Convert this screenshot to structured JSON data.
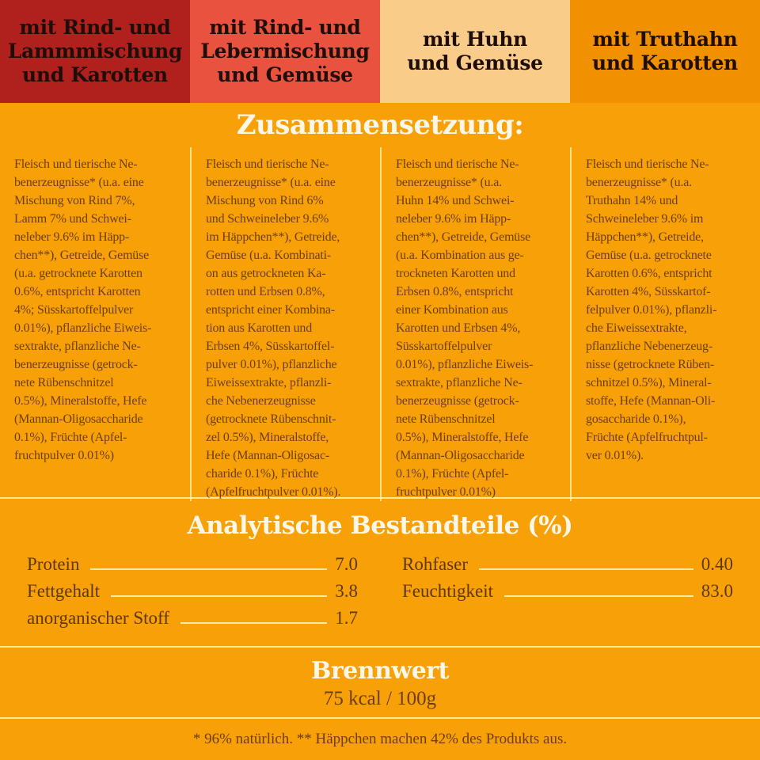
{
  "page": {
    "background": "#F8A008",
    "body_text_color": "#6D3E11",
    "title_color": "#FDF7EA",
    "divider_color": "#FFE88D"
  },
  "variants": [
    {
      "label": "mit Rind- und\nLammmischung\nund Karotten",
      "bg": "#B0211E",
      "text_color": "#1F0E08"
    },
    {
      "label": "mit Rind- und\nLebermischung\nund Gemüse",
      "bg": "#E8523F",
      "text_color": "#1F0E08"
    },
    {
      "label": "mit Huhn\nund Gemüse",
      "bg": "#FACC8A",
      "text_color": "#1F0E08"
    },
    {
      "label": "mit Truthahn\nund Karotten",
      "bg": "#F19000",
      "text_color": "#1F0E08"
    }
  ],
  "composition": {
    "title": "Zusammensetzung:",
    "columns": [
      "Fleisch und tierische Ne-\nbenerzeugnisse* (u.a. eine\nMischung von Rind 7%,\nLamm 7% und Schwei-\nneleber 9.6% im Häpp-\nchen**), Getreide, Gemüse\n(u.a. getrocknete Karotten\n0.6%, entspricht Karotten\n4%; Süsskartoffelpulver\n0.01%), pflanzliche Eiweis-\nsextrakte, pflanzliche Ne-\nbenerzeugnisse (getrock-\nnete Rübenschnitzel\n0.5%), Mineralstoffe, Hefe\n(Mannan-Oligosaccharide\n0.1%), Früchte (Apfel-\nfruchtpulver 0.01%)",
      "Fleisch und tierische Ne-\nbenerzeugnisse* (u.a. eine\nMischung von Rind 6%\nund Schweineleber 9.6%\nim Häppchen**), Getreide,\nGemüse (u.a. Kombinati-\non aus getrockneten Ka-\nrotten und Erbsen 0.8%,\nentspricht einer Kombina-\ntion aus Karotten und\nErbsen 4%, Süsskartoffel-\npulver 0.01%), pflanzliche\nEiweissextrakte, pflanzli-\nche Nebenerzeugnisse\n(getrocknete Rübenschnit-\nzel 0.5%), Mineralstoffe,\nHefe (Mannan-Oligosac-\ncharide 0.1%), Früchte\n(Apfelfruchtpulver 0.01%).",
      "Fleisch und tierische Ne-\nbenerzeugnisse* (u.a.\nHuhn 14% und Schwei-\nneleber 9.6% im Häpp-\nchen**), Getreide, Gemüse\n(u.a. Kombination aus ge-\ntrockneten Karotten und\nErbsen 0.8%, entspricht\neiner Kombination aus\nKarotten und Erbsen 4%,\nSüsskartoffelpulver\n0.01%), pflanzliche Eiweis-\nsextrakte, pflanzliche Ne-\nbenerzeugnisse (getrock-\nnete Rübenschnitzel\n0.5%), Mineralstoffe, Hefe\n(Mannan-Oligosaccharide\n0.1%), Früchte (Apfel-\nfruchtpulver 0.01%)",
      "Fleisch und tierische Ne-\nbenerzeugnisse* (u.a.\nTruthahn 14% und\nSchweineleber 9.6% im\nHäppchen**), Getreide,\nGemüse (u.a. getrocknete\nKarotten 0.6%, entspricht\nKarotten 4%, Süsskartof-\nfelpulver 0.01%), pflanzli-\nche Eiweissextrakte,\npflanzliche Nebenerzeug-\nnisse (getrocknete Rüben-\nschnitzel 0.5%), Mineral-\nstoffe, Hefe (Mannan-Oli-\ngosaccharide 0.1%),\nFrüchte (Apfelfruchtpul-\nver 0.01%)."
    ]
  },
  "analytical": {
    "title": "Analytische Bestandteile (%)",
    "left_rows": [
      {
        "label": "Protein",
        "value": "7.0"
      },
      {
        "label": "Fettgehalt",
        "value": "3.8"
      },
      {
        "label": "anorganischer Stoff",
        "value": "1.7"
      }
    ],
    "right_rows": [
      {
        "label": "Rohfaser",
        "value": "0.40"
      },
      {
        "label": "Feuchtigkeit",
        "value": "83.0"
      }
    ]
  },
  "energy": {
    "title": "Brennwert",
    "value": "75 kcal / 100g"
  },
  "footnote": "* 96% natürlich. ** Häppchen machen 42% des Produkts aus."
}
